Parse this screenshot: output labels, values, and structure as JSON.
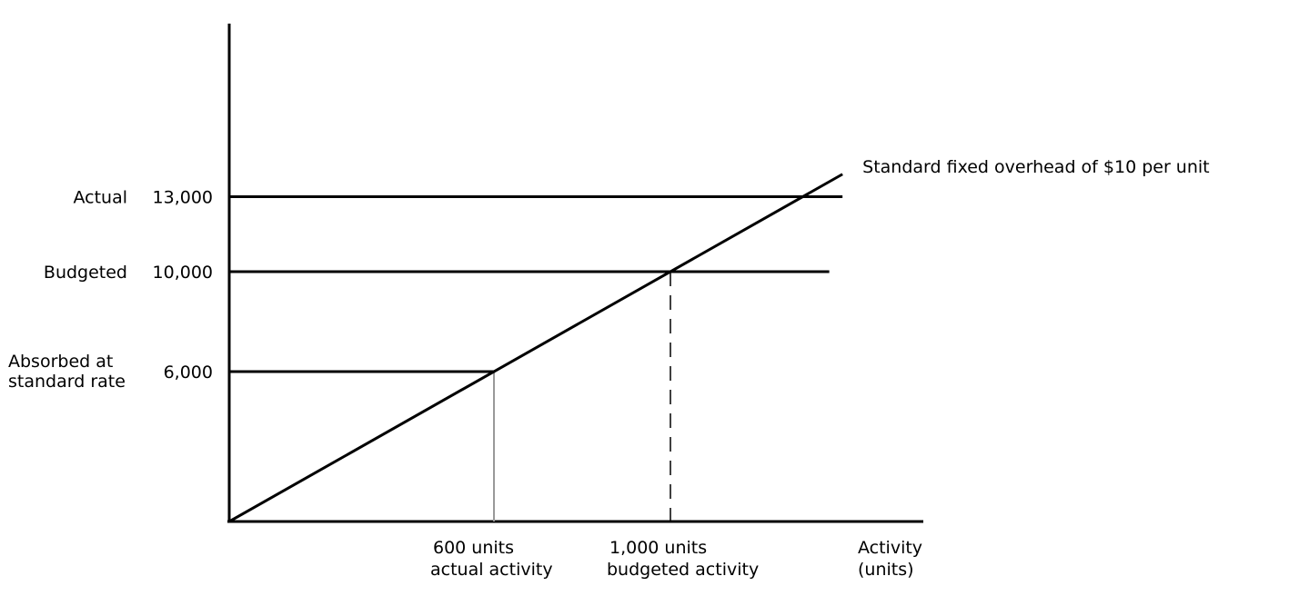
{
  "chart_data": {
    "type": "line",
    "title": "",
    "xlabel": "Activity (units)",
    "xlabel_lines": [
      "Activity",
      "(units)"
    ],
    "ylabel": "",
    "xlim": [
      0,
      1390
    ],
    "ylim": [
      0,
      14600
    ],
    "grid": false,
    "series": [
      {
        "name": "Standard fixed overhead of $10 per unit",
        "x": [
          0,
          1390
        ],
        "y": [
          0,
          13900
        ]
      }
    ],
    "reference_lines": [
      {
        "name": "Actual",
        "label": "Actual",
        "value": 13000,
        "value_label": "13,000",
        "x_end": 1390
      },
      {
        "name": "Budgeted",
        "label": "Budgeted",
        "value": 10000,
        "value_label": "10,000",
        "x_end": 1360
      },
      {
        "name": "Absorbed at standard rate",
        "label_lines": [
          "Absorbed at",
          "standard rate"
        ],
        "value": 6000,
        "value_label": "6,000",
        "x_end": 600
      }
    ],
    "drop_lines": [
      {
        "x": 600,
        "y": 6000,
        "style": "solid",
        "label_lines": [
          "600 units",
          "actual activity"
        ]
      },
      {
        "x": 1000,
        "y": 10000,
        "style": "dashed",
        "label_lines": [
          "1,000 units",
          "budgeted activity"
        ]
      }
    ]
  },
  "colors": {
    "line": "#000000",
    "drop_line": "#999999",
    "text": "#000000",
    "background": "#ffffff"
  }
}
